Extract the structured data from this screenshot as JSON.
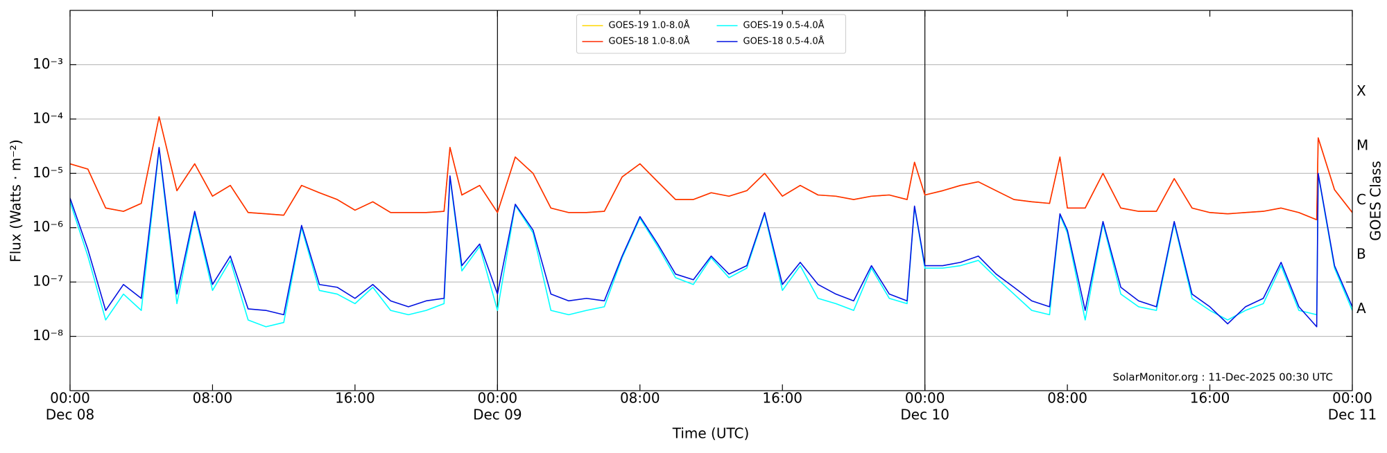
{
  "chart_data": {
    "type": "line",
    "y_label": "Flux (Watts · m⁻²)",
    "x_label": "Time (UTC)",
    "y2_label": "GOES Class",
    "annotation": "SolarMonitor.org : 11-Dec-2025 00:30 UTC",
    "yscale": "log",
    "grid": true,
    "legend": "upper center",
    "legend_columns": 2,
    "day_separators": true,
    "xlim": [
      "Dec 08 00:00",
      "Dec 11 00:00"
    ],
    "xticks": [
      {
        "value": "Dec 08 00:00",
        "label": "00:00"
      },
      {
        "value": "Dec 08 08:00",
        "label": "08:00"
      },
      {
        "value": "Dec 08 16:00",
        "label": "16:00"
      },
      {
        "value": "Dec 09 00:00",
        "label": "00:00"
      },
      {
        "value": "Dec 09 08:00",
        "label": "08:00"
      },
      {
        "value": "Dec 09 16:00",
        "label": "16:00"
      },
      {
        "value": "Dec 10 00:00",
        "label": "00:00"
      },
      {
        "value": "Dec 10 08:00",
        "label": "08:00"
      },
      {
        "value": "Dec 10 16:00",
        "label": "16:00"
      },
      {
        "value": "Dec 11 00:00",
        "label": "00:00"
      }
    ],
    "xdates": [
      {
        "value": "Dec 08 00:00",
        "label": "Dec 08"
      },
      {
        "value": "Dec 09 00:00",
        "label": "Dec 09"
      },
      {
        "value": "Dec 10 00:00",
        "label": "Dec 10"
      },
      {
        "value": "Dec 11 00:00",
        "label": "Dec 11"
      }
    ],
    "ylim": [
      1e-09,
      0.01
    ],
    "yticks": [
      {
        "value": 1e-08,
        "label": "10⁻⁸"
      },
      {
        "value": 1e-07,
        "label": "10⁻⁷"
      },
      {
        "value": 1e-06,
        "label": "10⁻⁶"
      },
      {
        "value": 1e-05,
        "label": "10⁻⁵"
      },
      {
        "value": 0.0001,
        "label": "10⁻⁴"
      },
      {
        "value": 0.001,
        "label": "10⁻³"
      }
    ],
    "y2lim": [
      1e-09,
      0.01
    ],
    "y2ticks": [
      {
        "value": 3.162e-08,
        "label": "A"
      },
      {
        "value": 3.162e-07,
        "label": "B"
      },
      {
        "value": 3.162e-06,
        "label": "C"
      },
      {
        "value": 3.162e-05,
        "label": "M"
      },
      {
        "value": 0.0003162,
        "label": "X"
      }
    ],
    "x": [
      "Dec 08 00:00",
      "Dec 08 01:00",
      "Dec 08 02:00",
      "Dec 08 03:00",
      "Dec 08 04:00",
      "Dec 08 05:00",
      "Dec 08 06:00",
      "Dec 08 07:00",
      "Dec 08 08:00",
      "Dec 08 09:00",
      "Dec 08 10:00",
      "Dec 08 11:00",
      "Dec 08 12:00",
      "Dec 08 13:00",
      "Dec 08 14:00",
      "Dec 08 15:00",
      "Dec 08 16:00",
      "Dec 08 17:00",
      "Dec 08 18:00",
      "Dec 08 19:00",
      "Dec 08 20:00",
      "Dec 08 21:00",
      "Dec 08 21:20",
      "Dec 08 22:00",
      "Dec 08 23:00",
      "Dec 09 00:00",
      "Dec 09 01:00",
      "Dec 09 02:00",
      "Dec 09 03:00",
      "Dec 09 04:00",
      "Dec 09 05:00",
      "Dec 09 06:00",
      "Dec 09 07:00",
      "Dec 09 08:00",
      "Dec 09 09:00",
      "Dec 09 10:00",
      "Dec 09 11:00",
      "Dec 09 12:00",
      "Dec 09 13:00",
      "Dec 09 14:00",
      "Dec 09 15:00",
      "Dec 09 16:00",
      "Dec 09 17:00",
      "Dec 09 18:00",
      "Dec 09 19:00",
      "Dec 09 20:00",
      "Dec 09 21:00",
      "Dec 09 22:00",
      "Dec 09 23:00",
      "Dec 09 23:25",
      "Dec 10 00:00",
      "Dec 10 01:00",
      "Dec 10 02:00",
      "Dec 10 03:00",
      "Dec 10 04:00",
      "Dec 10 05:00",
      "Dec 10 06:00",
      "Dec 10 07:00",
      "Dec 10 07:35",
      "Dec 10 08:00",
      "Dec 10 09:00",
      "Dec 10 10:00",
      "Dec 10 11:00",
      "Dec 10 12:00",
      "Dec 10 13:00",
      "Dec 10 14:00",
      "Dec 10 15:00",
      "Dec 10 16:00",
      "Dec 10 17:00",
      "Dec 10 18:00",
      "Dec 10 19:00",
      "Dec 10 20:00",
      "Dec 10 21:00",
      "Dec 10 22:00",
      "Dec 10 22:05",
      "Dec 10 23:00",
      "Dec 11 00:00"
    ],
    "series": [
      {
        "name": "GOES-19 1.0-8.0Å",
        "color": "#ffd700",
        "values": [
          1.5e-05,
          1.2e-05,
          2.3e-06,
          2e-06,
          2.8e-06,
          0.00011,
          4.8e-06,
          1.5e-05,
          3.8e-06,
          6e-06,
          1.9e-06,
          1.8e-06,
          1.7e-06,
          6e-06,
          4.4e-06,
          3.3e-06,
          2.1e-06,
          3e-06,
          1.9e-06,
          1.9e-06,
          1.9e-06,
          2e-06,
          3e-05,
          4e-06,
          6e-06,
          1.9e-06,
          2e-05,
          1e-05,
          2.3e-06,
          1.9e-06,
          1.9e-06,
          2e-06,
          8.6e-06,
          1.5e-05,
          7e-06,
          3.3e-06,
          3.3e-06,
          4.4e-06,
          3.8e-06,
          4.8e-06,
          1e-05,
          3.8e-06,
          6e-06,
          4e-06,
          3.8e-06,
          3.3e-06,
          3.8e-06,
          4e-06,
          3.3e-06,
          1.6e-05,
          4e-06,
          4.8e-06,
          6e-06,
          7e-06,
          4.8e-06,
          3.3e-06,
          3e-06,
          2.8e-06,
          2e-05,
          2.3e-06,
          2.3e-06,
          1e-05,
          2.3e-06,
          2e-06,
          2e-06,
          8e-06,
          2.3e-06,
          1.9e-06,
          1.8e-06,
          1.9e-06,
          2e-06,
          2.3e-06,
          1.9e-06,
          1.4e-06,
          4.5e-05,
          5e-06,
          1.9e-06
        ]
      },
      {
        "name": "GOES-18 1.0-8.0Å",
        "color": "#ff2a00",
        "values": [
          1.5e-05,
          1.2e-05,
          2.3e-06,
          2e-06,
          2.8e-06,
          0.00011,
          4.8e-06,
          1.5e-05,
          3.8e-06,
          6e-06,
          1.9e-06,
          1.8e-06,
          1.7e-06,
          6e-06,
          4.4e-06,
          3.3e-06,
          2.1e-06,
          3e-06,
          1.9e-06,
          1.9e-06,
          1.9e-06,
          2e-06,
          3e-05,
          4e-06,
          6e-06,
          1.9e-06,
          2e-05,
          1e-05,
          2.3e-06,
          1.9e-06,
          1.9e-06,
          2e-06,
          8.6e-06,
          1.5e-05,
          7e-06,
          3.3e-06,
          3.3e-06,
          4.4e-06,
          3.8e-06,
          4.8e-06,
          1e-05,
          3.8e-06,
          6e-06,
          4e-06,
          3.8e-06,
          3.3e-06,
          3.8e-06,
          4e-06,
          3.3e-06,
          1.6e-05,
          4e-06,
          4.8e-06,
          6e-06,
          7e-06,
          4.8e-06,
          3.3e-06,
          3e-06,
          2.8e-06,
          2e-05,
          2.3e-06,
          2.3e-06,
          1e-05,
          2.3e-06,
          2e-06,
          2e-06,
          8e-06,
          2.3e-06,
          1.9e-06,
          1.8e-06,
          1.9e-06,
          2e-06,
          2.3e-06,
          1.9e-06,
          1.4e-06,
          4.5e-05,
          5e-06,
          1.9e-06
        ]
      },
      {
        "name": "GOES-19 0.5-4.0Å",
        "color": "#00ffff",
        "values": [
          3e-06,
          3e-07,
          2e-08,
          6e-08,
          3e-08,
          2.8e-05,
          4e-08,
          1.8e-06,
          7e-08,
          2.5e-07,
          2e-08,
          1.5e-08,
          1.8e-08,
          1e-06,
          7e-08,
          6e-08,
          4e-08,
          8e-08,
          3e-08,
          2.5e-08,
          3e-08,
          4e-08,
          8.5e-06,
          1.6e-07,
          4.5e-07,
          3e-08,
          2.6e-06,
          8e-07,
          3e-08,
          2.5e-08,
          3e-08,
          3.5e-08,
          2.8e-07,
          1.5e-06,
          4.5e-07,
          1.2e-07,
          9e-08,
          2.8e-07,
          1.2e-07,
          1.8e-07,
          1.8e-06,
          7e-08,
          2e-07,
          5e-08,
          4e-08,
          3e-08,
          1.8e-07,
          5e-08,
          4e-08,
          2.4e-06,
          1.8e-07,
          1.8e-07,
          2e-07,
          2.5e-07,
          1.2e-07,
          6e-08,
          3e-08,
          2.5e-08,
          1.7e-06,
          8e-07,
          2e-08,
          1.2e-06,
          6e-08,
          3.5e-08,
          3e-08,
          1.2e-06,
          5e-08,
          3e-08,
          2e-08,
          3e-08,
          4e-08,
          2e-07,
          3e-08,
          2.5e-08,
          9.5e-06,
          1.8e-07,
          3e-08
        ]
      },
      {
        "name": "GOES-18 0.5-4.0Å",
        "color": "#0010e0",
        "values": [
          3.5e-06,
          4e-07,
          3e-08,
          9e-08,
          5e-08,
          3e-05,
          6e-08,
          2e-06,
          9e-08,
          3e-07,
          3.2e-08,
          3e-08,
          2.5e-08,
          1.1e-06,
          9e-08,
          8e-08,
          5e-08,
          9e-08,
          4.5e-08,
          3.5e-08,
          4.5e-08,
          5e-08,
          9e-06,
          2e-07,
          5e-07,
          6e-08,
          2.7e-06,
          9e-07,
          6e-08,
          4.5e-08,
          5e-08,
          4.5e-08,
          3e-07,
          1.6e-06,
          5e-07,
          1.4e-07,
          1.1e-07,
          3e-07,
          1.4e-07,
          2e-07,
          1.9e-06,
          9e-08,
          2.3e-07,
          9e-08,
          6e-08,
          4.5e-08,
          2e-07,
          6e-08,
          4.5e-08,
          2.5e-06,
          2e-07,
          2e-07,
          2.3e-07,
          3e-07,
          1.4e-07,
          8e-08,
          4.5e-08,
          3.5e-08,
          1.8e-06,
          9e-07,
          3e-08,
          1.3e-06,
          8e-08,
          4.5e-08,
          3.5e-08,
          1.3e-06,
          6e-08,
          3.5e-08,
          1.7e-08,
          3.5e-08,
          5e-08,
          2.3e-07,
          3.5e-08,
          1.5e-08,
          1e-05,
          2e-07,
          3.5e-08
        ]
      }
    ]
  }
}
